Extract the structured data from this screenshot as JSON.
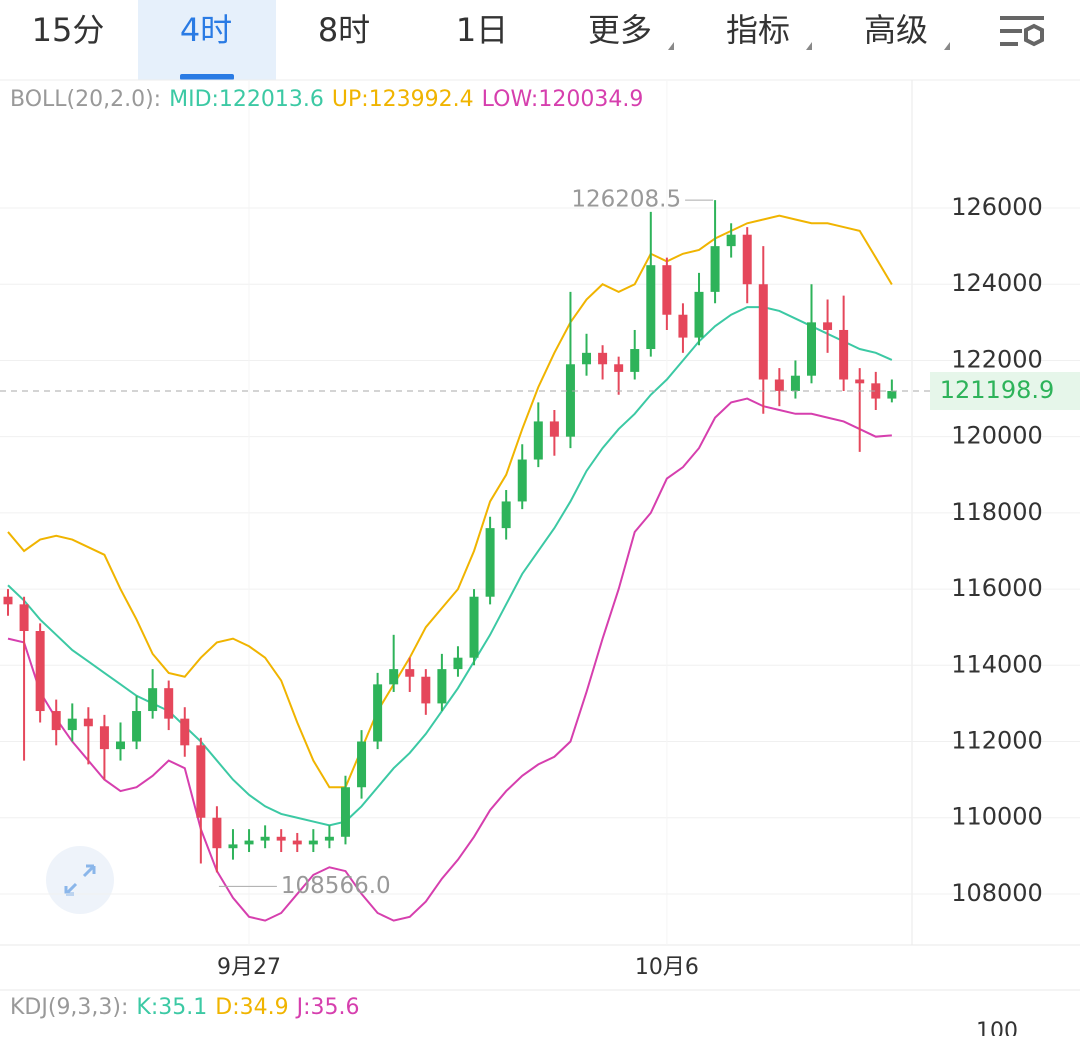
{
  "toolbar": {
    "tabs": [
      "15分",
      "4时",
      "8时",
      "1日",
      "更多",
      "指标",
      "高级"
    ]
  },
  "chart_data": {
    "type": "candlestick",
    "indicator": {
      "label": "BOLL(20,2.0):",
      "items": [
        {
          "label": "MID:",
          "value": 122013.6,
          "color": "#3cc9a4",
          "values": [
            116100,
            115700,
            115200,
            114800,
            114400,
            114100,
            113800,
            113500,
            113200,
            113000,
            112800,
            112400,
            112000,
            111500,
            111000,
            110600,
            110300,
            110100,
            110000,
            109900,
            109800,
            109900,
            110300,
            110800,
            111300,
            111700,
            112200,
            112800,
            113400,
            114100,
            114800,
            115600,
            116400,
            117000,
            117600,
            118300,
            119100,
            119700,
            120200,
            120600,
            121100,
            121500,
            122000,
            122500,
            122900,
            123200,
            123400,
            123400,
            123300,
            123100,
            122900,
            122700,
            122500,
            122300,
            122200,
            122013.6
          ]
        },
        {
          "label": "UP:",
          "value": 123992.4,
          "color": "#f0b400",
          "values": [
            117500,
            117000,
            117300,
            117400,
            117300,
            117100,
            116900,
            116000,
            115200,
            114300,
            113800,
            113700,
            114200,
            114600,
            114700,
            114500,
            114200,
            113600,
            112500,
            111500,
            110800,
            110800,
            111800,
            112800,
            113500,
            114200,
            115000,
            115500,
            116000,
            117000,
            118300,
            119000,
            120200,
            121300,
            122200,
            123000,
            123600,
            124000,
            123800,
            124000,
            124800,
            124600,
            124800,
            124900,
            125200,
            125400,
            125600,
            125700,
            125800,
            125700,
            125600,
            125600,
            125500,
            125400,
            124700,
            123992.4
          ]
        },
        {
          "label": "LOW:",
          "value": 120034.9,
          "color": "#d63fae",
          "values": [
            114700,
            114600,
            113300,
            112600,
            112000,
            111500,
            111000,
            110700,
            110800,
            111100,
            111500,
            111300,
            109700,
            108600,
            107900,
            107400,
            107300,
            107500,
            108000,
            108500,
            108700,
            108600,
            108000,
            107500,
            107300,
            107400,
            107800,
            108400,
            108900,
            109500,
            110200,
            110700,
            111100,
            111400,
            111600,
            112000,
            113300,
            114700,
            116000,
            117500,
            118000,
            118900,
            119200,
            119700,
            120500,
            120900,
            121000,
            120800,
            120700,
            120600,
            120600,
            120500,
            120400,
            120200,
            120000,
            120034.9
          ]
        }
      ]
    },
    "categories": [
      null,
      null,
      null,
      null,
      null,
      null,
      null,
      null,
      null,
      null,
      null,
      null,
      null,
      null,
      null,
      "9月27",
      null,
      null,
      null,
      null,
      null,
      null,
      null,
      null,
      null,
      null,
      null,
      null,
      null,
      null,
      null,
      null,
      null,
      null,
      null,
      null,
      null,
      null,
      null,
      null,
      null,
      "10月6",
      null,
      null,
      null,
      null,
      null,
      null,
      null,
      null,
      null,
      null,
      null,
      null,
      null,
      null
    ],
    "open": [
      115800,
      115600,
      114900,
      112800,
      112300,
      112600,
      112400,
      111800,
      112000,
      112800,
      113400,
      112600,
      111900,
      110000,
      109200,
      109300,
      109400,
      109500,
      109400,
      109300,
      109400,
      109500,
      110800,
      112000,
      113500,
      113900,
      113700,
      113000,
      113900,
      114200,
      115800,
      117600,
      118300,
      119400,
      120400,
      120000,
      121900,
      122200,
      121900,
      121700,
      122300,
      124500,
      123200,
      122600,
      123800,
      125000,
      125300,
      124000,
      121500,
      121200,
      121600,
      123000,
      122800,
      121500,
      121400,
      121000
    ],
    "high": [
      116000,
      115800,
      115100,
      113100,
      113000,
      112900,
      112700,
      112500,
      113200,
      113900,
      113600,
      112900,
      112100,
      110300,
      109700,
      109700,
      109800,
      109700,
      109600,
      109700,
      109800,
      111100,
      112300,
      113800,
      114800,
      114200,
      113900,
      114300,
      114500,
      116000,
      117900,
      118600,
      119800,
      120900,
      120700,
      123800,
      122700,
      122400,
      122100,
      122800,
      125900,
      124700,
      123500,
      124300,
      126208.5,
      125600,
      125500,
      125000,
      121800,
      122000,
      124000,
      123600,
      123700,
      121800,
      121700,
      121500
    ],
    "low": [
      115300,
      111500,
      112500,
      111900,
      112000,
      111400,
      111000,
      111500,
      111800,
      112600,
      112300,
      111600,
      108800,
      108566,
      108900,
      109100,
      109200,
      109100,
      109100,
      109100,
      109200,
      109300,
      110500,
      111800,
      113300,
      113300,
      112700,
      112800,
      113700,
      114000,
      115600,
      117300,
      118100,
      119200,
      119500,
      119700,
      121600,
      121500,
      121100,
      121500,
      122100,
      122800,
      122200,
      122400,
      123500,
      124700,
      123500,
      120600,
      120800,
      121000,
      121400,
      122200,
      121200,
      119600,
      120700,
      120900
    ],
    "close": [
      115600,
      114900,
      112800,
      112300,
      112600,
      112400,
      111800,
      112000,
      112800,
      113400,
      112600,
      111900,
      110000,
      109200,
      109300,
      109400,
      109500,
      109400,
      109300,
      109400,
      109500,
      110800,
      112000,
      113500,
      113900,
      113700,
      113000,
      113900,
      114200,
      115800,
      117600,
      118300,
      119400,
      120400,
      120000,
      121900,
      122200,
      121900,
      121700,
      122300,
      124500,
      123200,
      122600,
      123800,
      125000,
      125300,
      124000,
      121500,
      121200,
      121600,
      123000,
      122800,
      121500,
      121400,
      121000,
      121198.9
    ],
    "up_color": "#2eb35a",
    "down_color": "#e5475b",
    "last_price": 121198.9,
    "max_label": 126208.5,
    "min_label": {
      "value": 108566,
      "label": "108566.0"
    },
    "ylim": [
      106660,
      129360
    ],
    "yticks": [
      108000,
      110000,
      112000,
      114000,
      116000,
      118000,
      120000,
      122000,
      124000,
      126000
    ],
    "grid": true
  },
  "kdj": {
    "label": "KDJ(9,3,3):",
    "items": [
      {
        "label": "K:",
        "value": 35.1,
        "color": "#3cc9a4"
      },
      {
        "label": "D:",
        "value": 34.9,
        "color": "#f0b400"
      },
      {
        "label": "J:",
        "value": 35.6,
        "color": "#d63fae"
      }
    ],
    "yticks": [
      100
    ]
  }
}
